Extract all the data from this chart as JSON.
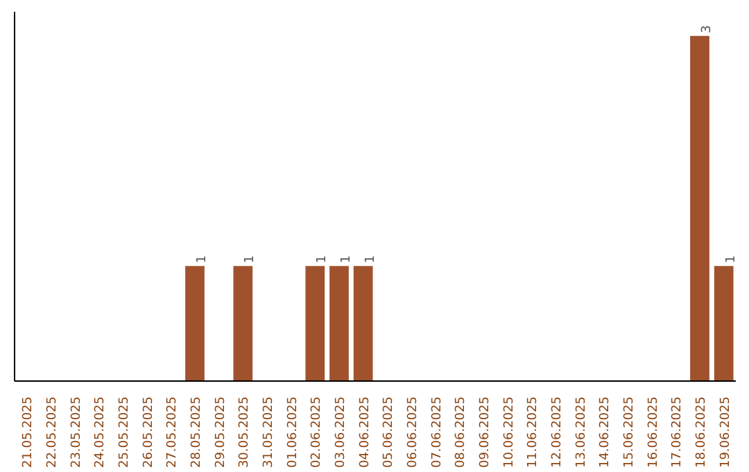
{
  "chart_data": {
    "type": "bar",
    "categories": [
      "21.05.2025",
      "22.05.2025",
      "23.05.2025",
      "24.05.2025",
      "25.05.2025",
      "26.05.2025",
      "27.05.2025",
      "28.05.2025",
      "29.05.2025",
      "30.05.2025",
      "31.05.2025",
      "01.06.2025",
      "02.06.2025",
      "03.06.2025",
      "04.06.2025",
      "05.06.2025",
      "06.06.2025",
      "07.06.2025",
      "08.06.2025",
      "09.06.2025",
      "10.06.2025",
      "11.06.2025",
      "12.06.2025",
      "13.06.2025",
      "14.06.2025",
      "15.06.2025",
      "16.06.2025",
      "17.06.2025",
      "18.06.2025",
      "19.06.2025"
    ],
    "values": [
      0,
      0,
      0,
      0,
      0,
      0,
      0,
      1,
      0,
      1,
      0,
      0,
      1,
      1,
      1,
      0,
      0,
      0,
      0,
      0,
      0,
      0,
      0,
      0,
      0,
      0,
      0,
      0,
      3,
      1
    ],
    "value_labels": [
      null,
      null,
      null,
      null,
      null,
      null,
      null,
      "1",
      null,
      "1",
      null,
      null,
      "1",
      "1",
      "1",
      null,
      null,
      null,
      null,
      null,
      null,
      null,
      null,
      null,
      null,
      null,
      null,
      null,
      "3",
      "1"
    ],
    "color": "#a0522d",
    "grid": false
  }
}
